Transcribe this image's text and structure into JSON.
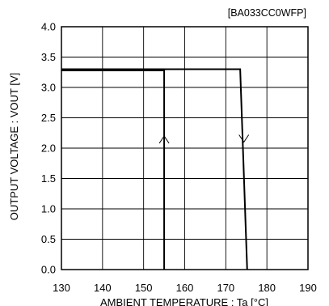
{
  "chart_data": {
    "type": "line",
    "title": "[BA033CC0WFP]",
    "xlabel": "AMBIENT TEMPERATURE : Ta [°C]",
    "ylabel": "OUTPUT VOLTAGE : VOUT [V]",
    "xlim": [
      130,
      190
    ],
    "ylim": [
      0.0,
      4.0
    ],
    "x_ticks": [
      130,
      140,
      150,
      160,
      170,
      180,
      190
    ],
    "y_ticks": [
      0.0,
      0.5,
      1.0,
      1.5,
      2.0,
      2.5,
      3.0,
      3.5,
      4.0
    ],
    "x_tick_labels": [
      "130",
      "140",
      "150",
      "160",
      "170",
      "180",
      "190"
    ],
    "y_tick_labels": [
      "0.0",
      "0.5",
      "1.0",
      "1.5",
      "2.0",
      "2.5",
      "3.0",
      "3.5",
      "4.0"
    ],
    "grid": true,
    "series": [
      {
        "x": [
          130,
          173.5,
          175.2
        ],
        "y": [
          3.3,
          3.3,
          0.0
        ],
        "arrow": {
          "x": 174.4,
          "y": 2.1,
          "direction": "down"
        }
      },
      {
        "x": [
          130,
          155,
          155
        ],
        "y": [
          3.28,
          3.28,
          0.0
        ],
        "arrow": {
          "x": 155,
          "y": 2.2,
          "direction": "up"
        }
      }
    ]
  }
}
